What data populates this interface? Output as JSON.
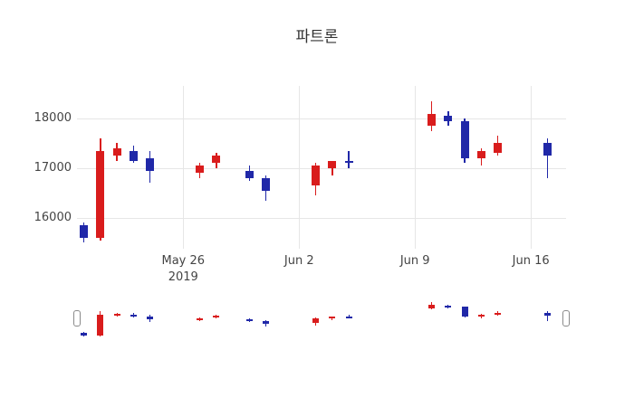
{
  "title": "파트론",
  "chart_data": {
    "type": "candlestick",
    "title": "파트론",
    "x_range": [
      "2019-05-19T14:00:00Z",
      "2019-06-18T03:00:00Z"
    ],
    "ylim": [
      15380,
      18655
    ],
    "y_ticks": [
      16000,
      17000,
      18000
    ],
    "x_ticks": [
      {
        "date": "2019-05-26",
        "label": "May 26",
        "sublabel": "2019"
      },
      {
        "date": "2019-06-02",
        "label": "Jun 2"
      },
      {
        "date": "2019-06-09",
        "label": "Jun 9"
      },
      {
        "date": "2019-06-16",
        "label": "Jun 16"
      }
    ],
    "increasing_color": "#d91c1c",
    "decreasing_color": "#2028a8",
    "grid_color": "#e6e6e6",
    "candles": [
      {
        "date": "2019-05-20",
        "open": 15850,
        "high": 15900,
        "low": 15500,
        "close": 15600
      },
      {
        "date": "2019-05-21",
        "open": 15600,
        "high": 17600,
        "low": 15550,
        "close": 17350
      },
      {
        "date": "2019-05-22",
        "open": 17250,
        "high": 17500,
        "low": 17150,
        "close": 17400
      },
      {
        "date": "2019-05-23",
        "open": 17350,
        "high": 17450,
        "low": 17100,
        "close": 17150
      },
      {
        "date": "2019-05-24",
        "open": 17200,
        "high": 17350,
        "low": 16700,
        "close": 16950
      },
      {
        "date": "2019-05-27",
        "open": 16900,
        "high": 17100,
        "low": 16800,
        "close": 17050
      },
      {
        "date": "2019-05-28",
        "open": 17100,
        "high": 17300,
        "low": 17000,
        "close": 17250
      },
      {
        "date": "2019-05-30",
        "open": 16950,
        "high": 17050,
        "low": 16750,
        "close": 16800
      },
      {
        "date": "2019-05-31",
        "open": 16800,
        "high": 16850,
        "low": 16350,
        "close": 16550
      },
      {
        "date": "2019-06-03",
        "open": 16650,
        "high": 17100,
        "low": 16450,
        "close": 17050
      },
      {
        "date": "2019-06-04",
        "open": 17000,
        "high": 17150,
        "low": 16850,
        "close": 17150
      },
      {
        "date": "2019-06-05",
        "open": 17150,
        "high": 17350,
        "low": 17000,
        "close": 17100
      },
      {
        "date": "2019-06-10",
        "open": 17850,
        "high": 18350,
        "low": 17750,
        "close": 18100
      },
      {
        "date": "2019-06-11",
        "open": 18050,
        "high": 18150,
        "low": 17850,
        "close": 17950
      },
      {
        "date": "2019-06-12",
        "open": 17950,
        "high": 18000,
        "low": 17100,
        "close": 17200
      },
      {
        "date": "2019-06-13",
        "open": 17200,
        "high": 17400,
        "low": 17050,
        "close": 17350
      },
      {
        "date": "2019-06-14",
        "open": 17300,
        "high": 17650,
        "low": 17250,
        "close": 17500
      },
      {
        "date": "2019-06-17",
        "open": 17500,
        "high": 17600,
        "low": 16800,
        "close": 17250
      }
    ]
  }
}
